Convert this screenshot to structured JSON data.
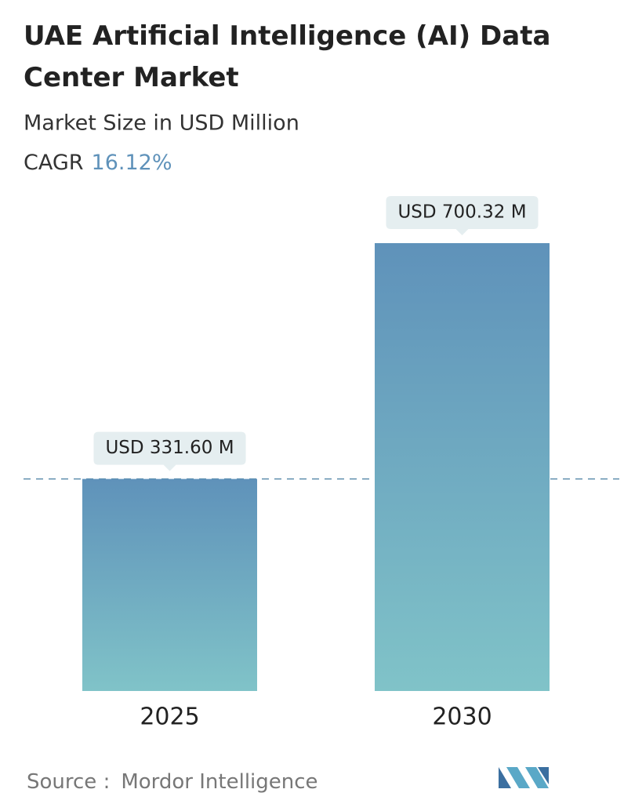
{
  "chart_data": {
    "type": "bar",
    "title": "UAE Artificial Intelligence (AI) Data Center Market",
    "subtitle": "Market Size in USD Million",
    "cagr_label": "CAGR",
    "cagr_value": "16.12%",
    "categories": [
      "2025",
      "2030"
    ],
    "values": [
      331.6,
      700.32
    ],
    "value_labels": [
      "USD 331.60 M",
      "USD 700.32 M"
    ],
    "source_label": "Source :",
    "source": "Mordor Intelligence"
  }
}
